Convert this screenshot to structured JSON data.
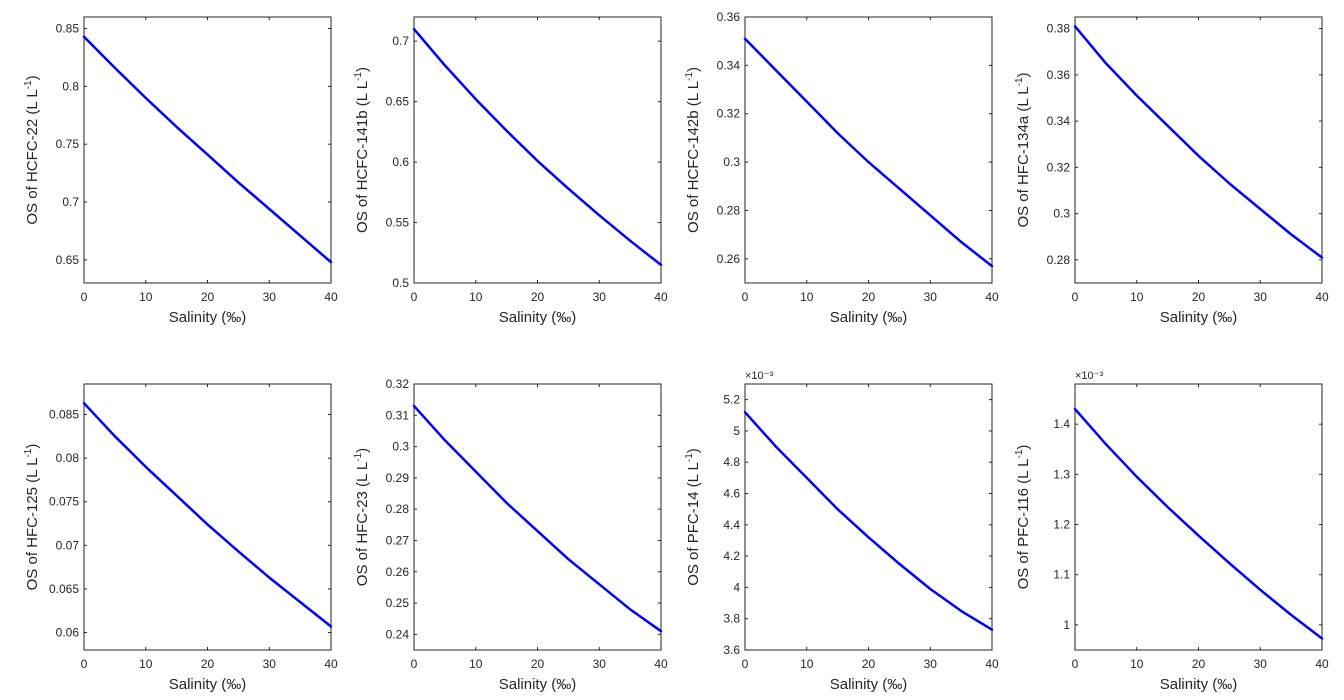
{
  "chart_data": [
    {
      "type": "line",
      "xlabel": "Salinity (‰)",
      "ylabel": {
        "main": "OS of HCFC-22 (L L",
        "sup": "-1",
        "tail": ")"
      },
      "xlim": [
        0,
        40
      ],
      "ylim": [
        0.63,
        0.86
      ],
      "xticks": [
        "0",
        "10",
        "20",
        "30",
        "40"
      ],
      "yticks": [
        {
          "v": 0.65,
          "label": "0.65"
        },
        {
          "v": 0.7,
          "label": "0.7"
        },
        {
          "v": 0.75,
          "label": "0.75"
        },
        {
          "v": 0.8,
          "label": "0.8"
        },
        {
          "v": 0.85,
          "label": "0.85"
        }
      ],
      "exponent": "",
      "series": [
        {
          "color": "#0000ff",
          "x": [
            0,
            5,
            10,
            15,
            20,
            25,
            30,
            35,
            40
          ],
          "y": [
            0.843,
            0.816,
            0.79,
            0.765,
            0.741,
            0.717,
            0.694,
            0.671,
            0.648
          ]
        }
      ]
    },
    {
      "type": "line",
      "xlabel": "Salinity (‰)",
      "ylabel": {
        "main": "OS of HCFC-141b (L L",
        "sup": "-1",
        "tail": ")"
      },
      "xlim": [
        0,
        40
      ],
      "ylim": [
        0.5,
        0.72
      ],
      "xticks": [
        "0",
        "10",
        "20",
        "30",
        "40"
      ],
      "yticks": [
        {
          "v": 0.5,
          "label": "0.5"
        },
        {
          "v": 0.55,
          "label": "0.55"
        },
        {
          "v": 0.6,
          "label": "0.6"
        },
        {
          "v": 0.65,
          "label": "0.65"
        },
        {
          "v": 0.7,
          "label": "0.7"
        }
      ],
      "exponent": "",
      "series": [
        {
          "color": "#0000ff",
          "x": [
            0,
            5,
            10,
            15,
            20,
            25,
            30,
            35,
            40
          ],
          "y": [
            0.71,
            0.68,
            0.652,
            0.626,
            0.601,
            0.578,
            0.556,
            0.535,
            0.515
          ]
        }
      ]
    },
    {
      "type": "line",
      "xlabel": "Salinity (‰)",
      "ylabel": {
        "main": "OS of HCFC-142b (L L",
        "sup": "-1",
        "tail": ")"
      },
      "xlim": [
        0,
        40
      ],
      "ylim": [
        0.25,
        0.36
      ],
      "xticks": [
        "0",
        "10",
        "20",
        "30",
        "40"
      ],
      "yticks": [
        {
          "v": 0.26,
          "label": "0.26"
        },
        {
          "v": 0.28,
          "label": "0.28"
        },
        {
          "v": 0.3,
          "label": "0.3"
        },
        {
          "v": 0.32,
          "label": "0.32"
        },
        {
          "v": 0.34,
          "label": "0.34"
        },
        {
          "v": 0.36,
          "label": "0.36"
        }
      ],
      "exponent": "",
      "series": [
        {
          "color": "#0000ff",
          "x": [
            0,
            5,
            10,
            15,
            20,
            25,
            30,
            35,
            40
          ],
          "y": [
            0.351,
            0.338,
            0.325,
            0.312,
            0.3,
            0.289,
            0.278,
            0.267,
            0.257
          ]
        }
      ]
    },
    {
      "type": "line",
      "xlabel": "Salinity (‰)",
      "ylabel": {
        "main": "OS of HFC-134a (L L",
        "sup": "-1",
        "tail": ")"
      },
      "xlim": [
        0,
        40
      ],
      "ylim": [
        0.27,
        0.385
      ],
      "xticks": [
        "0",
        "10",
        "20",
        "30",
        "40"
      ],
      "yticks": [
        {
          "v": 0.28,
          "label": "0.28"
        },
        {
          "v": 0.3,
          "label": "0.3"
        },
        {
          "v": 0.32,
          "label": "0.32"
        },
        {
          "v": 0.34,
          "label": "0.34"
        },
        {
          "v": 0.36,
          "label": "0.36"
        },
        {
          "v": 0.38,
          "label": "0.38"
        }
      ],
      "exponent": "",
      "series": [
        {
          "color": "#0000ff",
          "x": [
            0,
            5,
            10,
            15,
            20,
            25,
            30,
            35,
            40
          ],
          "y": [
            0.381,
            0.365,
            0.351,
            0.338,
            0.325,
            0.313,
            0.302,
            0.291,
            0.281
          ]
        }
      ]
    },
    {
      "type": "line",
      "xlabel": "Salinity (‰)",
      "ylabel": {
        "main": "OS of HFC-125 (L L",
        "sup": "-1",
        "tail": ")"
      },
      "xlim": [
        0,
        40
      ],
      "ylim": [
        0.058,
        0.0885
      ],
      "xticks": [
        "0",
        "10",
        "20",
        "30",
        "40"
      ],
      "yticks": [
        {
          "v": 0.06,
          "label": "0.06"
        },
        {
          "v": 0.065,
          "label": "0.065"
        },
        {
          "v": 0.07,
          "label": "0.07"
        },
        {
          "v": 0.075,
          "label": "0.075"
        },
        {
          "v": 0.08,
          "label": "0.08"
        },
        {
          "v": 0.085,
          "label": "0.085"
        }
      ],
      "exponent": "",
      "series": [
        {
          "color": "#0000ff",
          "x": [
            0,
            5,
            10,
            15,
            20,
            25,
            30,
            35,
            40
          ],
          "y": [
            0.0863,
            0.0825,
            0.079,
            0.0757,
            0.0724,
            0.0693,
            0.0663,
            0.0635,
            0.0607
          ]
        }
      ]
    },
    {
      "type": "line",
      "xlabel": "Salinity (‰)",
      "ylabel": {
        "main": "OS of HFC-23 (L L",
        "sup": "-1",
        "tail": ")"
      },
      "xlim": [
        0,
        40
      ],
      "ylim": [
        0.235,
        0.32
      ],
      "xticks": [
        "0",
        "10",
        "20",
        "30",
        "40"
      ],
      "yticks": [
        {
          "v": 0.24,
          "label": "0.24"
        },
        {
          "v": 0.25,
          "label": "0.25"
        },
        {
          "v": 0.26,
          "label": "0.26"
        },
        {
          "v": 0.27,
          "label": "0.27"
        },
        {
          "v": 0.28,
          "label": "0.28"
        },
        {
          "v": 0.29,
          "label": "0.29"
        },
        {
          "v": 0.3,
          "label": "0.3"
        },
        {
          "v": 0.31,
          "label": "0.31"
        },
        {
          "v": 0.32,
          "label": "0.32"
        }
      ],
      "exponent": "",
      "series": [
        {
          "color": "#0000ff",
          "x": [
            0,
            5,
            10,
            15,
            20,
            25,
            30,
            35,
            40
          ],
          "y": [
            0.313,
            0.302,
            0.292,
            0.282,
            0.273,
            0.264,
            0.256,
            0.248,
            0.241
          ]
        }
      ]
    },
    {
      "type": "line",
      "xlabel": "Salinity (‰)",
      "ylabel": {
        "main": "OS of PFC-14 (L L",
        "sup": "-1",
        "tail": ")"
      },
      "xlim": [
        0,
        40
      ],
      "ylim": [
        3.6,
        5.3
      ],
      "xticks": [
        "0",
        "10",
        "20",
        "30",
        "40"
      ],
      "yticks": [
        {
          "v": 3.6,
          "label": "3.6"
        },
        {
          "v": 3.8,
          "label": "3.8"
        },
        {
          "v": 4,
          "label": "4"
        },
        {
          "v": 4.2,
          "label": "4.2"
        },
        {
          "v": 4.4,
          "label": "4.4"
        },
        {
          "v": 4.6,
          "label": "4.6"
        },
        {
          "v": 4.8,
          "label": "4.8"
        },
        {
          "v": 5,
          "label": "5"
        },
        {
          "v": 5.2,
          "label": "5.2"
        }
      ],
      "exponent": "×10⁻³",
      "series": [
        {
          "color": "#0000ff",
          "x": [
            0,
            5,
            10,
            15,
            20,
            25,
            30,
            35,
            40
          ],
          "y": [
            5.12,
            4.9,
            4.7,
            4.5,
            4.32,
            4.15,
            3.99,
            3.85,
            3.73
          ]
        }
      ]
    },
    {
      "type": "line",
      "xlabel": "Salinity (‰)",
      "ylabel": {
        "main": "OS of PFC-116 (L L",
        "sup": "-1",
        "tail": ")"
      },
      "xlim": [
        0,
        40
      ],
      "ylim": [
        0.95,
        1.48
      ],
      "xticks": [
        "0",
        "10",
        "20",
        "30",
        "40"
      ],
      "yticks": [
        {
          "v": 1,
          "label": "1"
        },
        {
          "v": 1.1,
          "label": "1.1"
        },
        {
          "v": 1.2,
          "label": "1.2"
        },
        {
          "v": 1.3,
          "label": "1.3"
        },
        {
          "v": 1.4,
          "label": "1.4"
        }
      ],
      "exponent": "×10⁻³",
      "series": [
        {
          "color": "#0000ff",
          "x": [
            0,
            5,
            10,
            15,
            20,
            25,
            30,
            35,
            40
          ],
          "y": [
            1.43,
            1.36,
            1.295,
            1.235,
            1.178,
            1.123,
            1.07,
            1.02,
            0.973
          ]
        }
      ]
    }
  ]
}
